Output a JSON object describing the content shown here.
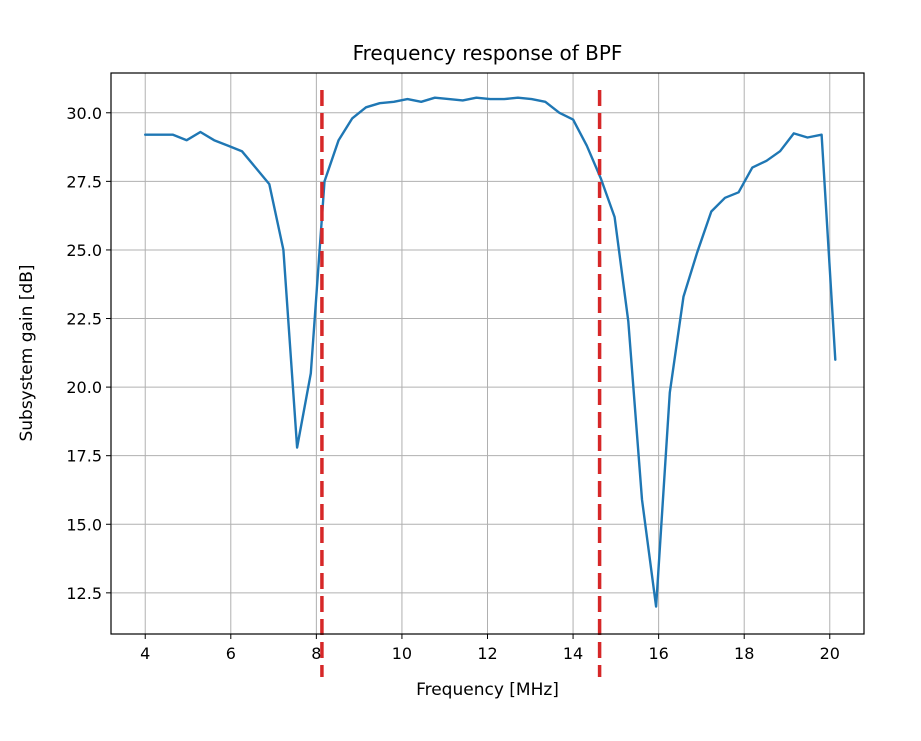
{
  "chart_data": {
    "type": "line",
    "title": "Frequency response of BPF",
    "xlabel": "Frequency [MHz]",
    "ylabel": "Subsystem gain [dB]",
    "xlim": [
      3.2,
      20.8
    ],
    "ylim": [
      11.0,
      31.45
    ],
    "xticks": [
      4,
      6,
      8,
      10,
      12,
      14,
      16,
      18,
      20
    ],
    "xtick_labels": [
      "4",
      "6",
      "8",
      "10",
      "12",
      "14",
      "16",
      "18",
      "20"
    ],
    "yticks": [
      12.5,
      15.0,
      17.5,
      20.0,
      22.5,
      25.0,
      27.5,
      30.0
    ],
    "ytick_labels": [
      "12.5",
      "15.0",
      "17.5",
      "20.0",
      "22.5",
      "25.0",
      "27.5",
      "30.0"
    ],
    "grid": true,
    "colors": {
      "series": "#1f77b4",
      "cutoff": "#d62728",
      "grid": "#b0b0b0",
      "axes": "#000000"
    },
    "series": [
      {
        "x": [
          4.0,
          4.32,
          4.65,
          4.97,
          5.29,
          5.61,
          5.94,
          6.26,
          6.58,
          6.9,
          7.23,
          7.55,
          7.87,
          8.19,
          8.52,
          8.84,
          9.16,
          9.48,
          9.81,
          10.13,
          10.45,
          10.77,
          11.1,
          11.42,
          11.74,
          12.06,
          12.39,
          12.71,
          13.03,
          13.35,
          13.68,
          14.0,
          14.32,
          14.65,
          14.97,
          15.29,
          15.61,
          15.94,
          16.26,
          16.58,
          16.9,
          17.23,
          17.55,
          17.87,
          18.19,
          18.52,
          18.84,
          19.16,
          19.48,
          19.81,
          20.13
        ],
        "y": [
          29.2,
          29.2,
          29.2,
          29.0,
          29.3,
          29.0,
          28.8,
          28.6,
          28.0,
          27.4,
          25.0,
          17.8,
          20.5,
          27.5,
          29.0,
          29.8,
          30.2,
          30.35,
          30.4,
          30.5,
          30.4,
          30.55,
          30.5,
          30.45,
          30.55,
          30.5,
          30.5,
          30.55,
          30.5,
          30.4,
          30.0,
          29.75,
          28.8,
          27.6,
          26.2,
          22.4,
          15.9,
          12.0,
          19.8,
          23.3,
          24.9,
          26.4,
          26.9,
          27.1,
          28.0,
          28.25,
          28.6,
          29.25,
          29.1,
          29.2,
          21.0
        ]
      }
    ],
    "cutoff_lines": [
      8.13,
      14.62
    ]
  }
}
